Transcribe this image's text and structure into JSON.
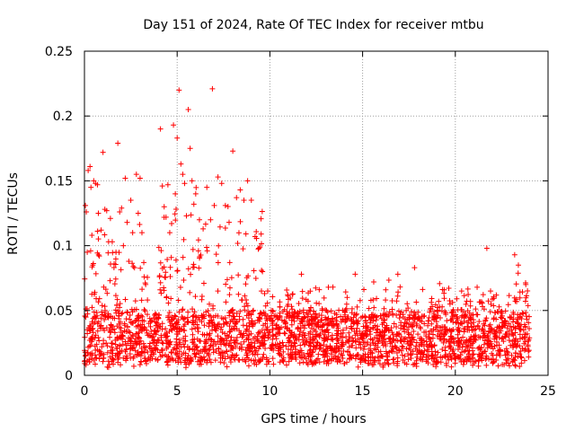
{
  "chart_data": {
    "type": "scatter",
    "title": "Day 151 of 2024, Rate Of TEC Index for receiver mtbu",
    "xlabel": "GPS time / hours",
    "ylabel": "ROTI / TECUs",
    "xlim": [
      0,
      25
    ],
    "ylim": [
      0,
      0.25
    ],
    "x_ticks": [
      "0",
      "5",
      "10",
      "15",
      "20",
      "25"
    ],
    "y_ticks": [
      "0",
      "0.05",
      "0.1",
      "0.15",
      "0.2",
      "0.25"
    ],
    "grid": true,
    "marker": "plus",
    "color": "#ff0000",
    "series": [
      {
        "values_note": "dense scatter; representative sampled points",
        "points": [
          [
            0.05,
            0.131
          ],
          [
            0.1,
            0.126
          ],
          [
            0.15,
            0.095
          ],
          [
            0.2,
            0.158
          ],
          [
            0.3,
            0.161
          ],
          [
            0.35,
            0.145
          ],
          [
            0.4,
            0.108
          ],
          [
            0.45,
            0.085
          ],
          [
            0.5,
            0.15
          ],
          [
            0.6,
            0.148
          ],
          [
            0.7,
            0.147
          ],
          [
            0.75,
            0.125
          ],
          [
            0.8,
            0.092
          ],
          [
            0.9,
            0.112
          ],
          [
            1.0,
            0.172
          ],
          [
            1.1,
            0.128
          ],
          [
            1.2,
            0.127
          ],
          [
            1.3,
            0.103
          ],
          [
            1.4,
            0.121
          ],
          [
            1.5,
            0.103
          ],
          [
            1.6,
            0.086
          ],
          [
            1.7,
            0.095
          ],
          [
            1.8,
            0.179
          ],
          [
            1.9,
            0.126
          ],
          [
            2.0,
            0.129
          ],
          [
            2.1,
            0.1
          ],
          [
            2.2,
            0.152
          ],
          [
            2.3,
            0.118
          ],
          [
            2.5,
            0.135
          ],
          [
            2.6,
            0.11
          ],
          [
            2.7,
            0.083
          ],
          [
            2.8,
            0.155
          ],
          [
            2.9,
            0.125
          ],
          [
            3.0,
            0.152
          ],
          [
            3.1,
            0.11
          ],
          [
            3.2,
            0.087
          ],
          [
            3.3,
            0.07
          ],
          [
            4.1,
            0.19
          ],
          [
            4.2,
            0.146
          ],
          [
            4.3,
            0.13
          ],
          [
            4.4,
            0.122
          ],
          [
            4.5,
            0.147
          ],
          [
            4.6,
            0.11
          ],
          [
            4.7,
            0.117
          ],
          [
            4.8,
            0.193
          ],
          [
            4.9,
            0.14
          ],
          [
            5.0,
            0.183
          ],
          [
            5.1,
            0.22
          ],
          [
            5.2,
            0.163
          ],
          [
            5.3,
            0.155
          ],
          [
            5.4,
            0.148
          ],
          [
            5.5,
            0.123
          ],
          [
            5.6,
            0.205
          ],
          [
            5.7,
            0.175
          ],
          [
            5.8,
            0.15
          ],
          [
            5.9,
            0.132
          ],
          [
            6.0,
            0.14
          ],
          [
            6.2,
            0.12
          ],
          [
            6.4,
            0.113
          ],
          [
            6.6,
            0.145
          ],
          [
            6.8,
            0.12
          ],
          [
            6.9,
            0.221
          ],
          [
            7.0,
            0.131
          ],
          [
            7.2,
            0.153
          ],
          [
            7.4,
            0.148
          ],
          [
            7.6,
            0.131
          ],
          [
            7.8,
            0.118
          ],
          [
            8.0,
            0.173
          ],
          [
            8.2,
            0.137
          ],
          [
            8.4,
            0.143
          ],
          [
            8.6,
            0.135
          ],
          [
            8.8,
            0.15
          ],
          [
            9.0,
            0.135
          ],
          [
            9.2,
            0.107
          ],
          [
            9.4,
            0.098
          ],
          [
            9.6,
            0.08
          ],
          [
            11.7,
            0.078
          ],
          [
            13.4,
            0.068
          ],
          [
            14.6,
            0.078
          ],
          [
            15.6,
            0.072
          ],
          [
            16.9,
            0.078
          ],
          [
            17.8,
            0.083
          ],
          [
            19.4,
            0.066
          ],
          [
            21.7,
            0.098
          ],
          [
            21.9,
            0.065
          ],
          [
            23.2,
            0.093
          ],
          [
            23.4,
            0.085
          ],
          [
            23.8,
            0.07
          ]
        ]
      }
    ]
  }
}
